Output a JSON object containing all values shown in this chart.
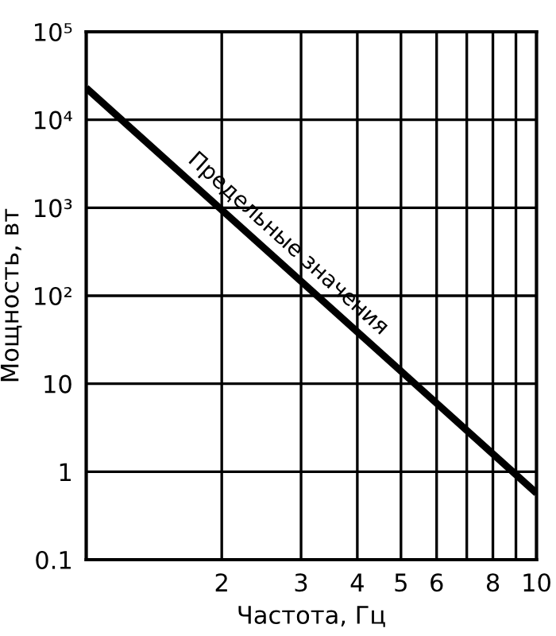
{
  "chart_data": {
    "type": "line",
    "xlabel": "Частота, Гц",
    "ylabel": "Мощность, вт",
    "log": "xy",
    "x": [
      1,
      10
    ],
    "series": [
      {
        "color": "#000000",
        "values": [
          23000,
          0.57
        ]
      }
    ],
    "xlim": [
      1,
      10
    ],
    "xticks": [
      {
        "value": 1,
        "label": null
      },
      2,
      3,
      4,
      5,
      6,
      {
        "value": 7,
        "label": null
      },
      8,
      {
        "value": 9,
        "label": null
      },
      10
    ],
    "ylim": [
      0.1,
      100000
    ],
    "yticks": [
      {
        "value": 0.1,
        "label": "0.1"
      },
      1,
      10,
      {
        "value": 100,
        "label": "10²"
      },
      {
        "value": 1000,
        "label": "10³"
      },
      {
        "value": 10000,
        "label": "10⁴"
      },
      {
        "value": 100000,
        "label": "10⁵"
      }
    ],
    "grid": true,
    "marker": "none",
    "line_style": "solid",
    "annotations": [
      "Предельные значения"
    ]
  }
}
